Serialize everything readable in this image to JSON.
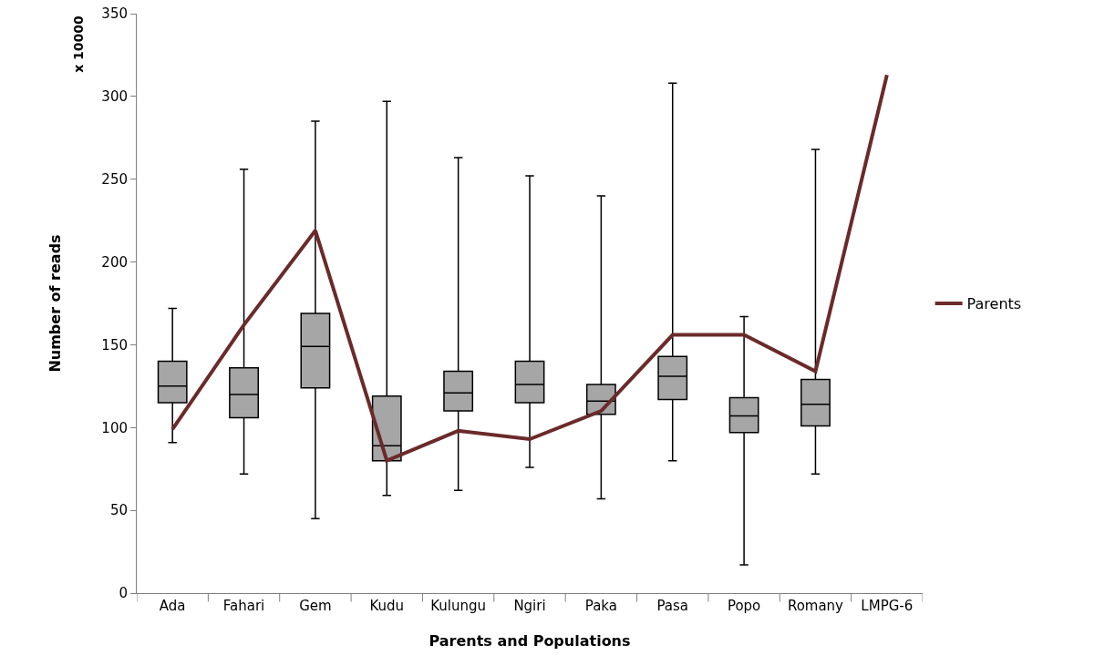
{
  "chart_data": {
    "type": "box",
    "xlabel": "Parents and Populations",
    "ylabel": "Number of reads",
    "annotations": [
      "x 10000"
    ],
    "categories": [
      "Ada",
      "Fahari",
      "Gem",
      "Kudu",
      "Kulungu",
      "Ngiri",
      "Paka",
      "Pasa",
      "Popo",
      "Romany",
      "LMPG-6"
    ],
    "color": "#a6a6a6",
    "boxes": [
      {
        "low": 91,
        "q1": 115,
        "median": 125,
        "q3": 140,
        "high": 172
      },
      {
        "low": 72,
        "q1": 106,
        "median": 120,
        "q3": 136,
        "high": 256
      },
      {
        "low": 45,
        "q1": 124,
        "median": 149,
        "q3": 169,
        "high": 285
      },
      {
        "low": 59,
        "q1": 80,
        "median": 89,
        "q3": 119,
        "high": 297
      },
      {
        "low": 62,
        "q1": 110,
        "median": 121,
        "q3": 134,
        "high": 263
      },
      {
        "low": 76,
        "q1": 115,
        "median": 126,
        "q3": 140,
        "high": 252
      },
      {
        "low": 57,
        "q1": 108,
        "median": 116,
        "q3": 126,
        "high": 240
      },
      {
        "low": 80,
        "q1": 117,
        "median": 131,
        "q3": 143,
        "high": 308
      },
      {
        "low": 17,
        "q1": 97,
        "median": 107,
        "q3": 118,
        "high": 167
      },
      {
        "low": 72,
        "q1": 101,
        "median": 114,
        "q3": 129,
        "high": 268
      },
      null
    ],
    "series": [
      {
        "name": "Parents",
        "type": "line",
        "color": "#6b2a2a",
        "values": [
          99,
          162,
          219,
          80,
          98,
          93,
          110,
          156,
          156,
          134,
          313
        ]
      }
    ],
    "ylim": [
      0,
      350
    ],
    "yticks": [
      0,
      50,
      100,
      150,
      200,
      250,
      300,
      350
    ],
    "grid": false,
    "legend": "right",
    "marker": "none",
    "line_style": "solid"
  }
}
